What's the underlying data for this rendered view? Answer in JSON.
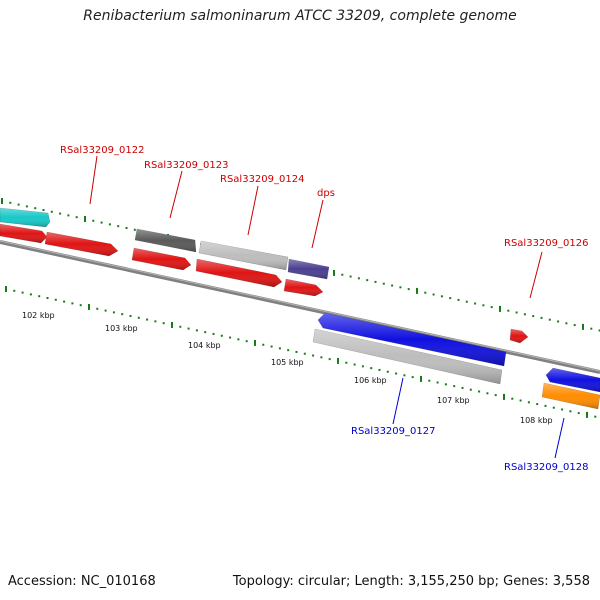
{
  "title": "Renibacterium salmoninarum ATCC 33209, complete genome",
  "footer": {
    "accession": "Accession: NC_010168",
    "topology": "Topology: circular; Length: 3,155,250 bp; Genes: 3,558"
  },
  "ruler_labels": [
    "102 kbp",
    "103 kbp",
    "104 kbp",
    "105 kbp",
    "106 kbp",
    "107 kbp",
    "108 kbp"
  ],
  "genes": [
    {
      "id": "g-cyan",
      "label": "",
      "color": "#18c8c8"
    },
    {
      "id": "g-red-a",
      "label": "",
      "color": "#e01414"
    },
    {
      "id": "g-0122",
      "label": "RSal33209_0122",
      "color": "#e01414",
      "label_color": "#cc0000"
    },
    {
      "id": "g-0123-dark",
      "label": "RSal33209_0123",
      "color": "#5a5a5a",
      "label_color": "#cc0000"
    },
    {
      "id": "g-red-b",
      "label": "",
      "color": "#e01414"
    },
    {
      "id": "g-0124-gray",
      "label": "RSal33209_0124",
      "color": "#bdbdbd",
      "label_color": "#cc0000"
    },
    {
      "id": "g-red-c",
      "label": "",
      "color": "#e01414"
    },
    {
      "id": "g-dps",
      "label": "dps",
      "color": "#4a3f8f",
      "label_color": "#cc0000"
    },
    {
      "id": "g-red-d",
      "label": "",
      "color": "#e01414"
    },
    {
      "id": "g-0126",
      "label": "RSal33209_0126",
      "color": "#e01414",
      "label_color": "#cc0000"
    },
    {
      "id": "g-0127",
      "label": "RSal33209_0127",
      "color": "#1010e0",
      "label_color": "#0000cc"
    },
    {
      "id": "g-gray-long",
      "label": "",
      "color": "#bdbdbd"
    },
    {
      "id": "g-0128",
      "label": "RSal33209_0128",
      "color": "#1010e0",
      "label_color": "#0000cc"
    },
    {
      "id": "g-orange",
      "label": "",
      "color": "#ff8c00"
    }
  ],
  "colors": {
    "backbone": "#808080",
    "tick_green": "#1a7a1a",
    "forward_label": "#cc0000",
    "reverse_label": "#0000cc"
  }
}
